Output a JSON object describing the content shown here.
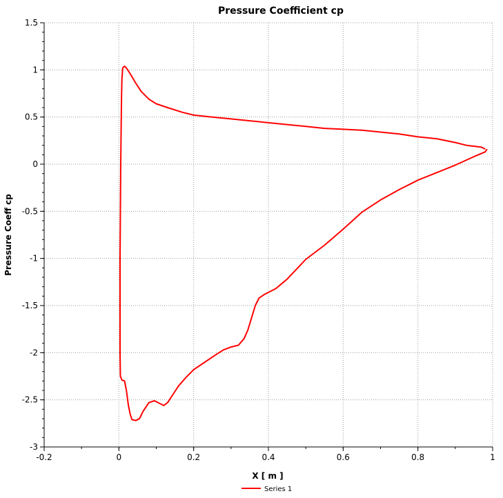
{
  "chart_data": {
    "type": "line",
    "title": "Pressure Coefficient cp",
    "xlabel": "X [ m ]",
    "ylabel": "Pressure Coeff cp",
    "xlim": [
      -0.2,
      1.0
    ],
    "ylim": [
      -3.0,
      1.5
    ],
    "x_ticks": [
      -0.2,
      0,
      0.2,
      0.4,
      0.6,
      0.8,
      1
    ],
    "x_tick_labels": [
      "-0.2",
      "0",
      "0.2",
      "0.4",
      "0.6",
      "0.8",
      "1"
    ],
    "y_ticks": [
      -3,
      -2.5,
      -2,
      -1.5,
      -1,
      -0.5,
      0,
      0.5,
      1,
      1.5
    ],
    "y_tick_labels": [
      "-3",
      "-2.5",
      "-2",
      "-1.5",
      "-1",
      "-0.5",
      "0",
      "0.5",
      "1",
      "1.5"
    ],
    "grid": true,
    "legend_position": "bottom-center",
    "series": [
      {
        "name": "Series 1",
        "color": "#ff0000",
        "points": [
          [
            0.98,
            0.16
          ],
          [
            0.97,
            0.18
          ],
          [
            0.95,
            0.19
          ],
          [
            0.93,
            0.2
          ],
          [
            0.9,
            0.23
          ],
          [
            0.85,
            0.27
          ],
          [
            0.8,
            0.29
          ],
          [
            0.75,
            0.32
          ],
          [
            0.7,
            0.34
          ],
          [
            0.65,
            0.36
          ],
          [
            0.6,
            0.37
          ],
          [
            0.55,
            0.38
          ],
          [
            0.5,
            0.4
          ],
          [
            0.45,
            0.42
          ],
          [
            0.4,
            0.44
          ],
          [
            0.35,
            0.46
          ],
          [
            0.3,
            0.48
          ],
          [
            0.25,
            0.5
          ],
          [
            0.2,
            0.52
          ],
          [
            0.17,
            0.55
          ],
          [
            0.13,
            0.6
          ],
          [
            0.1,
            0.64
          ],
          [
            0.08,
            0.69
          ],
          [
            0.06,
            0.77
          ],
          [
            0.045,
            0.86
          ],
          [
            0.03,
            0.96
          ],
          [
            0.02,
            1.02
          ],
          [
            0.015,
            1.04
          ],
          [
            0.01,
            1.02
          ],
          [
            0.008,
            0.9
          ],
          [
            0.007,
            0.7
          ],
          [
            0.006,
            0.4
          ],
          [
            0.005,
            0.0
          ],
          [
            0.004,
            -0.5
          ],
          [
            0.003,
            -1.0
          ],
          [
            0.003,
            -1.5
          ],
          [
            0.003,
            -2.0
          ],
          [
            0.004,
            -2.25
          ],
          [
            0.008,
            -2.29
          ],
          [
            0.015,
            -2.3
          ],
          [
            0.02,
            -2.4
          ],
          [
            0.025,
            -2.55
          ],
          [
            0.03,
            -2.65
          ],
          [
            0.035,
            -2.71
          ],
          [
            0.045,
            -2.72
          ],
          [
            0.055,
            -2.7
          ],
          [
            0.065,
            -2.62
          ],
          [
            0.08,
            -2.53
          ],
          [
            0.095,
            -2.51
          ],
          [
            0.11,
            -2.54
          ],
          [
            0.12,
            -2.56
          ],
          [
            0.13,
            -2.53
          ],
          [
            0.145,
            -2.44
          ],
          [
            0.16,
            -2.35
          ],
          [
            0.18,
            -2.26
          ],
          [
            0.2,
            -2.18
          ],
          [
            0.23,
            -2.1
          ],
          [
            0.26,
            -2.02
          ],
          [
            0.28,
            -1.97
          ],
          [
            0.3,
            -1.94
          ],
          [
            0.32,
            -1.92
          ],
          [
            0.335,
            -1.85
          ],
          [
            0.345,
            -1.76
          ],
          [
            0.355,
            -1.63
          ],
          [
            0.365,
            -1.5
          ],
          [
            0.375,
            -1.42
          ],
          [
            0.39,
            -1.38
          ],
          [
            0.42,
            -1.32
          ],
          [
            0.45,
            -1.22
          ],
          [
            0.5,
            -1.01
          ],
          [
            0.55,
            -0.86
          ],
          [
            0.6,
            -0.69
          ],
          [
            0.65,
            -0.51
          ],
          [
            0.7,
            -0.38
          ],
          [
            0.75,
            -0.27
          ],
          [
            0.8,
            -0.17
          ],
          [
            0.85,
            -0.09
          ],
          [
            0.9,
            -0.01
          ],
          [
            0.95,
            0.08
          ],
          [
            0.98,
            0.13
          ],
          [
            0.985,
            0.16
          ]
        ]
      }
    ]
  }
}
